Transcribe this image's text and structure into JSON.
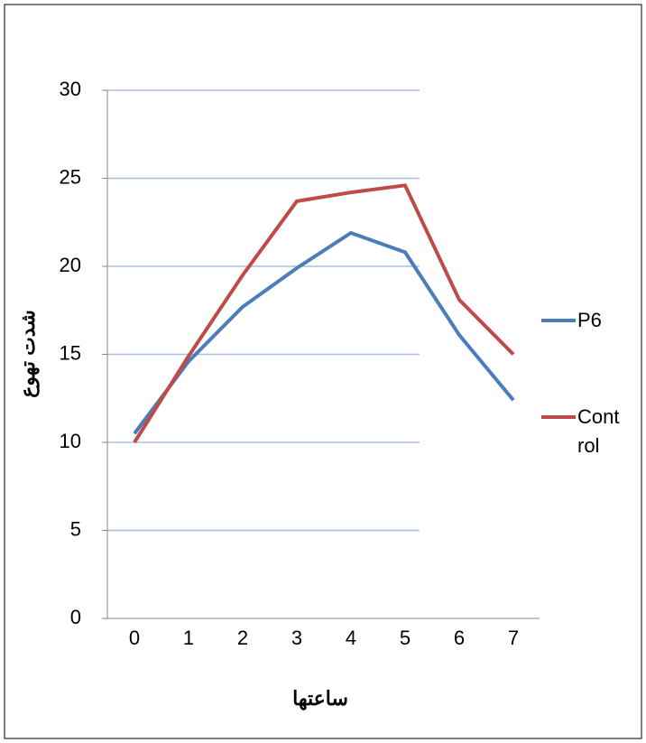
{
  "chart_data": {
    "type": "line",
    "x_label": "ساعتها",
    "y_label": "شدت تهوع",
    "categories": [
      "0",
      "1",
      "2",
      "3",
      "4",
      "5",
      "6",
      "7"
    ],
    "series": [
      {
        "name": "P6",
        "color": "#4a7ebb",
        "values": [
          10.5,
          14.6,
          17.7,
          19.9,
          21.9,
          20.8,
          16.1,
          12.4
        ]
      },
      {
        "name": "Control",
        "color": "#be4b48",
        "values": [
          10,
          14.9,
          19.5,
          23.7,
          24.2,
          24.6,
          18.1,
          15.0
        ]
      }
    ],
    "ylim": [
      0,
      30
    ],
    "yticks": [
      0,
      5,
      10,
      15,
      20,
      25,
      30
    ],
    "grid": true,
    "legend": "right"
  }
}
